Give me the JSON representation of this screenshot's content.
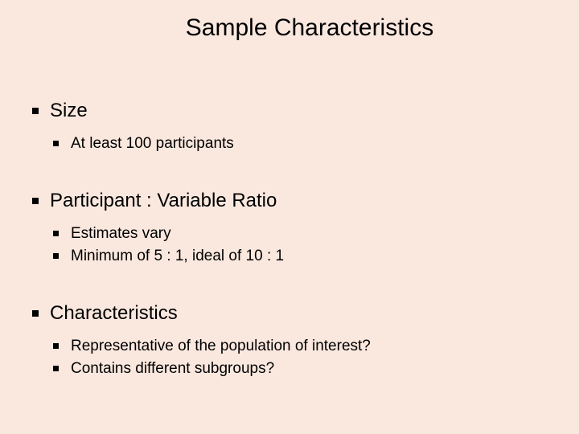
{
  "slide": {
    "title": "Sample Characteristics",
    "background_color": "#fae8df",
    "text_color": "#000000",
    "title_fontsize": 30,
    "l1_fontsize": 24,
    "l2_fontsize": 19,
    "font_family": "Arial",
    "sections": [
      {
        "heading": "Size",
        "items": [
          "At least 100 participants"
        ]
      },
      {
        "heading": "Participant : Variable Ratio",
        "items": [
          "Estimates vary",
          "Minimum of 5 : 1, ideal of 10 : 1"
        ]
      },
      {
        "heading": "Characteristics",
        "items": [
          "Representative of the population of interest?",
          "Contains different subgroups?"
        ]
      }
    ]
  }
}
